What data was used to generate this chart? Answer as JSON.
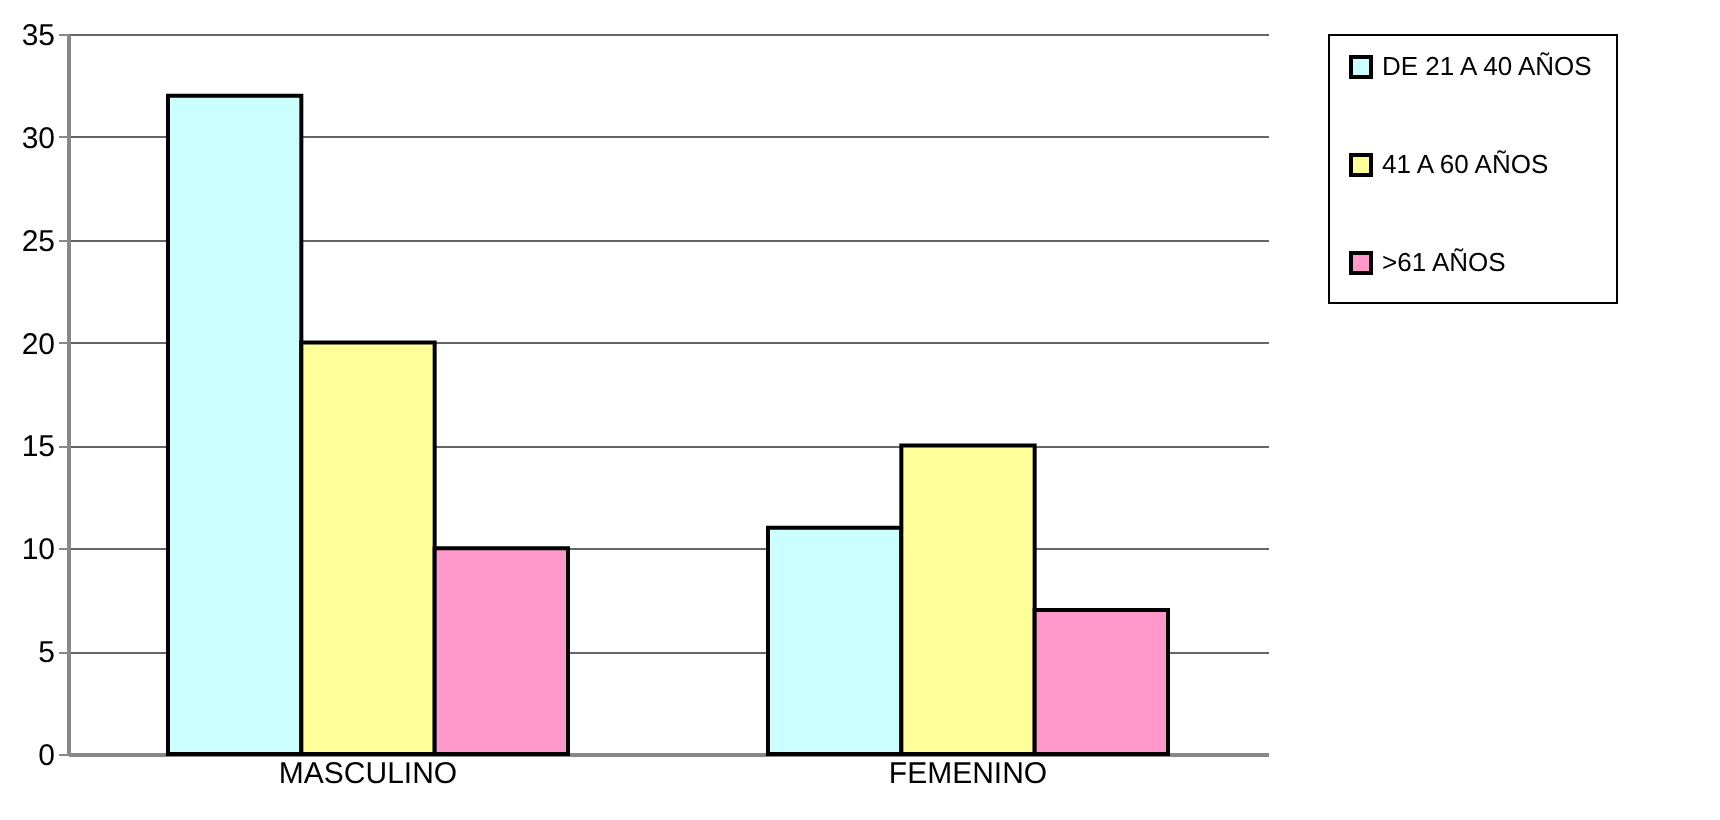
{
  "chart_data": {
    "type": "bar",
    "categories": [
      "MASCULINO",
      "FEMENINO"
    ],
    "series": [
      {
        "name": "DE 21 A 40 AÑOS",
        "color": "#ccffff",
        "values": [
          32,
          11
        ]
      },
      {
        "name": "41 A 60 AÑOS",
        "color": "#ffff99",
        "values": [
          20,
          15
        ]
      },
      {
        "name": ">61 AÑOS",
        "color": "#ff99cc",
        "values": [
          10,
          7
        ]
      }
    ],
    "ylim": [
      0,
      35
    ],
    "yticks": [
      0,
      5,
      10,
      15,
      20,
      25,
      30,
      35
    ],
    "grid": "y",
    "legend": "right"
  }
}
